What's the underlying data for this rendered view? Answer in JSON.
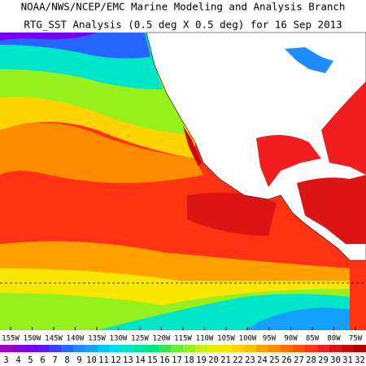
{
  "header": {
    "title": "NOAA/NWS/NCEP/EMC Marine Modeling and Analysis Branch",
    "subtitle": "RTG_SST Analysis (0.5 deg X 0.5 deg) for 16 Sep 2013"
  },
  "longitude_labels": [
    "155W",
    "150W",
    "145W",
    "140W",
    "135W",
    "130W",
    "125W",
    "120W",
    "115W",
    "110W",
    "105W",
    "100W",
    "95W",
    "90W",
    "85W",
    "80W",
    "75W"
  ],
  "colorbar": {
    "labels": [
      "3",
      "4",
      "5",
      "6",
      "7",
      "8",
      "9",
      "10",
      "11",
      "12",
      "13",
      "14",
      "15",
      "16",
      "17",
      "18",
      "19",
      "20",
      "21",
      "22",
      "23",
      "24",
      "25",
      "26",
      "27",
      "28",
      "29",
      "30",
      "31",
      "32"
    ],
    "colors": [
      "#a000c8",
      "#8c00dc",
      "#7800f0",
      "#5a14ff",
      "#3c3cff",
      "#2864ff",
      "#1e8cff",
      "#14a0ff",
      "#00c8ff",
      "#00dcf0",
      "#00e6c8",
      "#00e6a0",
      "#00e678",
      "#32e650",
      "#64f032",
      "#96f01e",
      "#c8f014",
      "#e6f000",
      "#fae600",
      "#ffd200",
      "#ffbe00",
      "#ffa000",
      "#ff8c00",
      "#ff6e00",
      "#ff5000",
      "#ff3214",
      "#f01e1e",
      "#dc1414",
      "#c80a0a",
      "#b40000"
    ]
  }
}
